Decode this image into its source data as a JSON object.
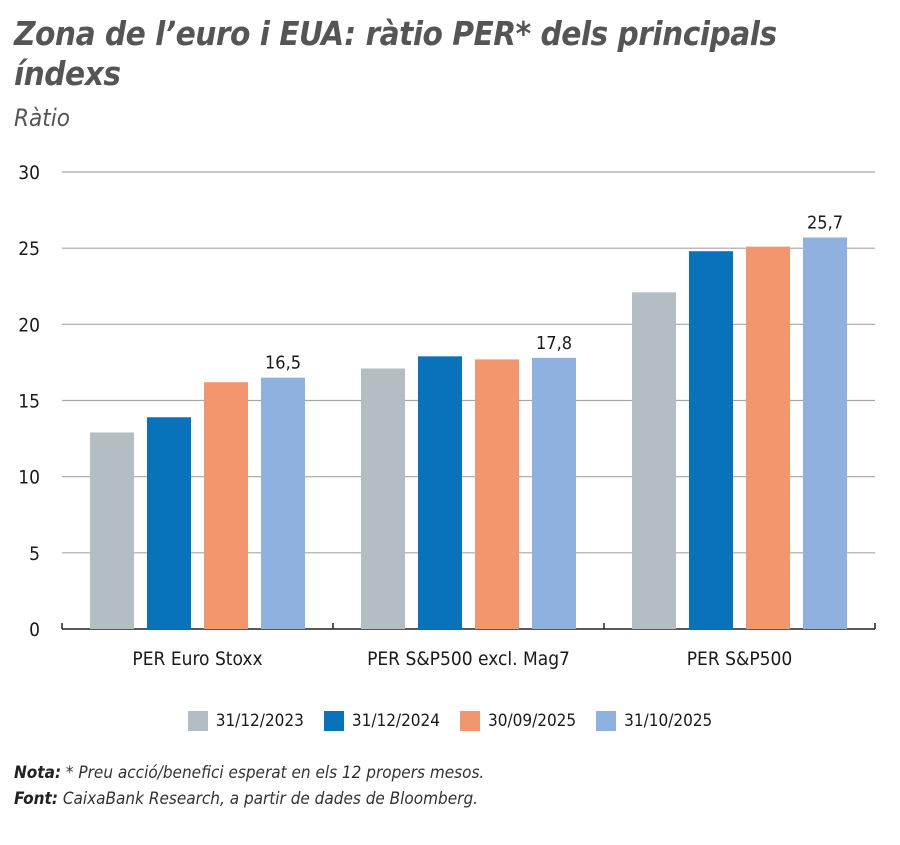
{
  "title": "Zona de l’euro i EUA: ràtio PER* dels principals índexs",
  "subtitle": "Ràtio",
  "notes": {
    "nota_label": "Nota:",
    "nota_text": " * Preu acció/benefici esperat en els 12 propers mesos.",
    "font_label": "Font:",
    "font_text": " CaixaBank Research, a partir de dades de Bloomberg."
  },
  "chart_data": {
    "type": "bar",
    "ylabel": "Ràtio",
    "ylim": [
      0,
      30
    ],
    "yticks": [
      0,
      5,
      10,
      15,
      20,
      25,
      30
    ],
    "grid": true,
    "legend_position": "bottom",
    "categories": [
      "PER Euro Stoxx",
      "PER S&P500 excl. Mag7",
      "PER S&P500"
    ],
    "series": [
      {
        "name": "31/12/2023",
        "color": "#b2bec3",
        "values": [
          12.9,
          17.1,
          22.1
        ]
      },
      {
        "name": "31/12/2024",
        "color": "#0872ba",
        "values": [
          13.9,
          17.9,
          24.8
        ]
      },
      {
        "name": "30/09/2025",
        "color": "#f2976d",
        "values": [
          16.2,
          17.7,
          25.1
        ]
      },
      {
        "name": "31/10/2025",
        "color": "#8eb1e0",
        "values": [
          16.5,
          17.8,
          25.7
        ]
      }
    ],
    "data_labels": [
      "16,5",
      "17,8",
      "25,7"
    ]
  }
}
